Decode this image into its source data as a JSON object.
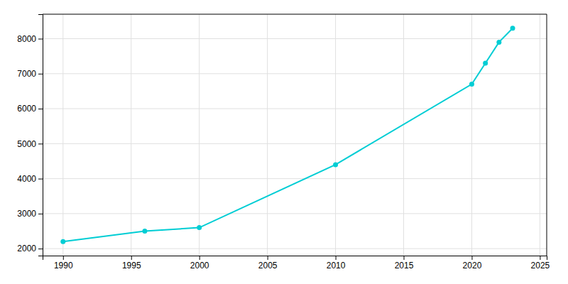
{
  "chart_data": {
    "type": "line",
    "x": [
      1990,
      1996,
      2000,
      2010,
      2020,
      2021,
      2022,
      2023
    ],
    "values": [
      2200,
      2500,
      2600,
      4400,
      6700,
      7300,
      7900,
      8300
    ],
    "color": "#00CDD4",
    "marker": "circle",
    "xlim": [
      1988.5,
      2025.5
    ],
    "ylim": [
      1800,
      8700
    ],
    "xticks": [
      1990,
      1995,
      2000,
      2005,
      2010,
      2015,
      2020,
      2025
    ],
    "yticks": [
      2000,
      3000,
      4000,
      5000,
      6000,
      7000,
      8000
    ],
    "grid": true
  }
}
